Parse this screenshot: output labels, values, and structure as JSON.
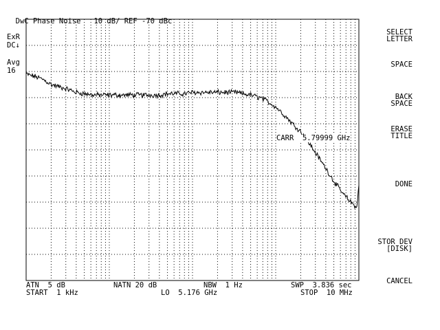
{
  "header": {
    "mode": "DwC",
    "title": "Phase Noise",
    "scale": "10 dB/",
    "ref": "REF -70 dBc"
  },
  "left_annotations": {
    "exr": "ExR",
    "dc": "DC↓",
    "avg_label": "Avg",
    "avg_value": "16"
  },
  "marker": {
    "label": "CARR",
    "freq": "5.79999 GHz"
  },
  "bottom": {
    "atn": "ATN  5 dB",
    "natn": "NATN 20 dB",
    "nbw": "NBW  1 Hz",
    "swp": "SWP  3.836 sec",
    "start": "START  1 kHz",
    "lo": "LO  5.176 GHz",
    "stop": "STOP  10 MHz"
  },
  "softkeys": [
    {
      "line1": "SELECT",
      "line2": "LETTER"
    },
    {
      "line1": "SPACE",
      "line2": ""
    },
    {
      "line1": "BACK",
      "line2": "SPACE"
    },
    {
      "line1": "ERASE",
      "line2": "TITLE"
    },
    {
      "line1": "DONE",
      "line2": ""
    },
    {
      "line1": "STOR DEV",
      "line2": "[DISK]"
    },
    {
      "line1": "CANCEL",
      "line2": ""
    }
  ],
  "chart_data": {
    "type": "line",
    "title": "Phase Noise",
    "x_scale": "log",
    "xlim": [
      1000,
      10000000
    ],
    "ylim": [
      -170,
      -70
    ],
    "ylabel": "",
    "xlabel": "",
    "grid": true,
    "series": [
      {
        "x": [
          1000,
          1300,
          1600,
          2000,
          2600,
          3300,
          4000,
          5000,
          6500,
          8000,
          10000,
          13000,
          16000,
          20000,
          26000,
          33000,
          40000,
          50000,
          65000,
          80000,
          100000,
          130000,
          160000,
          200000,
          260000,
          330000,
          400000,
          500000,
          650000,
          800000,
          1000000,
          1300000,
          1600000,
          2000000,
          2600000,
          3300000,
          4000000,
          5000000,
          6500000,
          8000000,
          9500000,
          10000000
        ],
        "values": [
          -91,
          -92,
          -93,
          -95,
          -96,
          -97,
          -98,
          -98.5,
          -99,
          -99,
          -99,
          -99,
          -99,
          -99,
          -99,
          -99,
          -99,
          -98.5,
          -98.5,
          -98.5,
          -98,
          -98,
          -98,
          -98,
          -98,
          -98,
          -98.5,
          -99,
          -100,
          -101.5,
          -103.5,
          -107,
          -110,
          -113,
          -118,
          -123,
          -127,
          -132,
          -137,
          -140,
          -142,
          -133
        ]
      }
    ]
  }
}
